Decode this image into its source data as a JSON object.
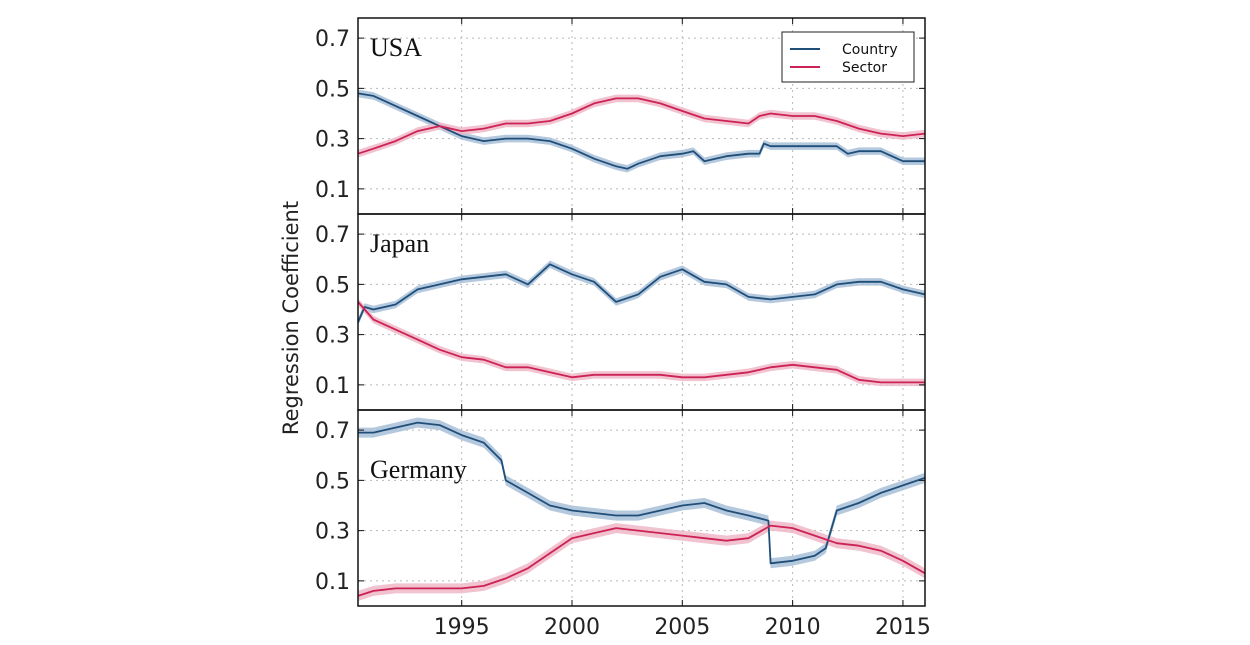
{
  "chart_data": {
    "type": "line",
    "ylabel": "Regression Coefficient",
    "x_ticks": [
      1995,
      2000,
      2005,
      2010,
      2015
    ],
    "y_ticks": [
      0.1,
      0.3,
      0.5,
      0.7
    ],
    "xlim": [
      1990.3,
      2016.0
    ],
    "ylim": [
      0.0,
      0.78
    ],
    "grid": true,
    "legend": {
      "placement": "top-right",
      "entries": [
        "Country",
        "Sector"
      ]
    },
    "colors": {
      "Country": "#1f4e79",
      "Sector": "#cc2255",
      "Country_band": "#a8bfd8",
      "Sector_band": "#eeb7c7"
    },
    "panels": [
      {
        "title": "USA",
        "band": 0.015,
        "series": [
          {
            "name": "Country",
            "x": [
              1990.3,
              1991,
              1992,
              1993,
              1994,
              1995,
              1996,
              1997,
              1998,
              1999,
              2000,
              2001,
              2002,
              2002.5,
              2003,
              2004,
              2005,
              2005.5,
              2006,
              2007,
              2008,
              2008.5,
              2008.7,
              2009,
              2010,
              2011,
              2012,
              2012.5,
              2013,
              2014,
              2015,
              2016
            ],
            "y": [
              0.48,
              0.47,
              0.43,
              0.39,
              0.35,
              0.31,
              0.29,
              0.3,
              0.3,
              0.29,
              0.26,
              0.22,
              0.19,
              0.18,
              0.2,
              0.23,
              0.24,
              0.25,
              0.21,
              0.23,
              0.24,
              0.24,
              0.28,
              0.27,
              0.27,
              0.27,
              0.27,
              0.24,
              0.25,
              0.25,
              0.21,
              0.21
            ]
          },
          {
            "name": "Sector",
            "x": [
              1990.3,
              1991,
              1992,
              1993,
              1994,
              1995,
              1996,
              1997,
              1998,
              1999,
              2000,
              2001,
              2002,
              2003,
              2004,
              2005,
              2006,
              2007,
              2008,
              2008.5,
              2009,
              2010,
              2011,
              2012,
              2013,
              2014,
              2015,
              2016
            ],
            "y": [
              0.24,
              0.26,
              0.29,
              0.33,
              0.35,
              0.33,
              0.34,
              0.36,
              0.36,
              0.37,
              0.4,
              0.44,
              0.46,
              0.46,
              0.44,
              0.41,
              0.38,
              0.37,
              0.36,
              0.39,
              0.4,
              0.39,
              0.39,
              0.37,
              0.34,
              0.32,
              0.31,
              0.32
            ]
          }
        ]
      },
      {
        "title": "Japan",
        "band": 0.015,
        "series": [
          {
            "name": "Country",
            "x": [
              1990.3,
              1990.6,
              1991,
              1992,
              1993,
              1994,
              1995,
              1996,
              1997,
              1998,
              1999,
              2000,
              2001,
              2002,
              2003,
              2004,
              2005,
              2006,
              2007,
              2008,
              2009,
              2010,
              2011,
              2012,
              2013,
              2014,
              2015,
              2016
            ],
            "y": [
              0.35,
              0.41,
              0.4,
              0.42,
              0.48,
              0.5,
              0.52,
              0.53,
              0.54,
              0.5,
              0.58,
              0.54,
              0.51,
              0.43,
              0.46,
              0.53,
              0.56,
              0.51,
              0.5,
              0.45,
              0.44,
              0.45,
              0.46,
              0.5,
              0.51,
              0.51,
              0.48,
              0.46
            ]
          },
          {
            "name": "Sector",
            "x": [
              1990.3,
              1991,
              1992,
              1993,
              1994,
              1995,
              1996,
              1997,
              1998,
              1999,
              2000,
              2001,
              2002,
              2003,
              2004,
              2005,
              2006,
              2007,
              2008,
              2009,
              2010,
              2011,
              2012,
              2013,
              2014,
              2015,
              2016
            ],
            "y": [
              0.43,
              0.36,
              0.32,
              0.28,
              0.24,
              0.21,
              0.2,
              0.17,
              0.17,
              0.15,
              0.13,
              0.14,
              0.14,
              0.14,
              0.14,
              0.13,
              0.13,
              0.14,
              0.15,
              0.17,
              0.18,
              0.17,
              0.16,
              0.12,
              0.11,
              0.11,
              0.11
            ]
          }
        ]
      },
      {
        "title": "Germany",
        "band": 0.02,
        "series": [
          {
            "name": "Country",
            "x": [
              1990.3,
              1991,
              1992,
              1993,
              1994,
              1995,
              1996,
              1996.8,
              1997,
              1998,
              1999,
              2000,
              2001,
              2002,
              2003,
              2004,
              2005,
              2006,
              2007,
              2008,
              2008.9,
              2009,
              2010,
              2011,
              2011.5,
              2012,
              2013,
              2014,
              2015,
              2016
            ],
            "y": [
              0.69,
              0.69,
              0.71,
              0.73,
              0.72,
              0.68,
              0.65,
              0.58,
              0.5,
              0.45,
              0.4,
              0.38,
              0.37,
              0.36,
              0.36,
              0.38,
              0.4,
              0.41,
              0.38,
              0.36,
              0.34,
              0.17,
              0.18,
              0.2,
              0.23,
              0.38,
              0.41,
              0.45,
              0.48,
              0.51
            ]
          },
          {
            "name": "Sector",
            "x": [
              1990.3,
              1991,
              1992,
              1993,
              1994,
              1995,
              1996,
              1997,
              1998,
              1999,
              2000,
              2001,
              2002,
              2003,
              2004,
              2005,
              2006,
              2007,
              2008,
              2009,
              2010,
              2011,
              2012,
              2013,
              2014,
              2015,
              2016
            ],
            "y": [
              0.04,
              0.06,
              0.07,
              0.07,
              0.07,
              0.07,
              0.08,
              0.11,
              0.15,
              0.21,
              0.27,
              0.29,
              0.31,
              0.3,
              0.29,
              0.28,
              0.27,
              0.26,
              0.27,
              0.32,
              0.31,
              0.28,
              0.25,
              0.24,
              0.22,
              0.18,
              0.13
            ]
          }
        ]
      }
    ]
  }
}
